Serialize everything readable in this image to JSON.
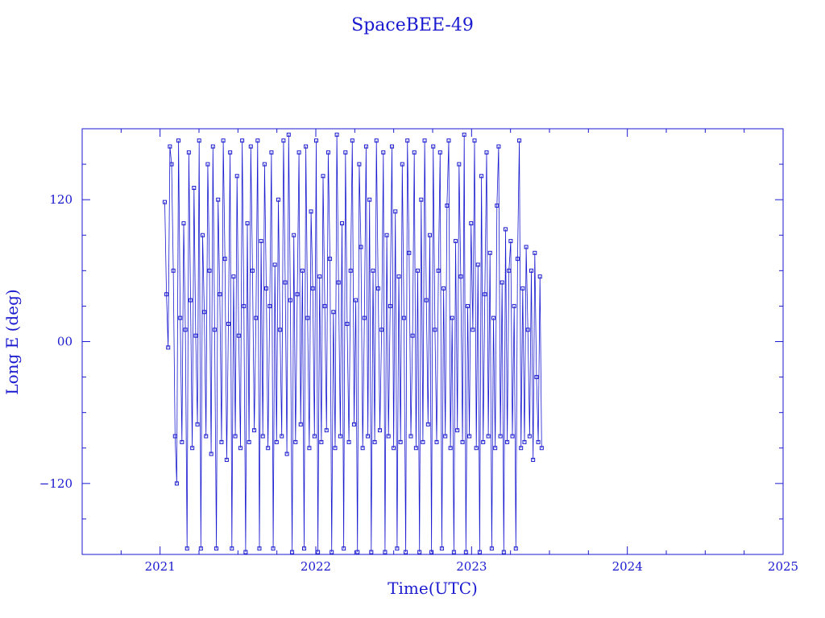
{
  "chart_data": {
    "type": "scatter",
    "title": "SpaceBEE-49",
    "xlabel": "Time(UTC)",
    "ylabel": "Long E (deg)",
    "xlim": [
      2020.5,
      2025.0
    ],
    "ylim": [
      -180,
      180
    ],
    "xticks": [
      2021,
      2022,
      2023,
      2024,
      2025
    ],
    "xtick_labels": [
      "2021",
      "2022",
      "2023",
      "2024",
      "2025"
    ],
    "yticks": [
      -120,
      0,
      120
    ],
    "ytick_labels": [
      "−120",
      "00",
      "120"
    ],
    "color": "#1a1ad0",
    "grid": false,
    "markers": "small open squares joined by thin lines",
    "series": [
      {
        "x_range": [
          2021.03,
          2023.45
        ],
        "y": [
          118,
          40,
          -5,
          165,
          150,
          60,
          -80,
          -120,
          170,
          20,
          -85,
          100,
          10,
          -175,
          160,
          35,
          -90,
          130,
          5,
          -70,
          170,
          -175,
          90,
          25,
          -80,
          150,
          60,
          -95,
          165,
          10,
          -175,
          120,
          40,
          -85,
          170,
          70,
          -100,
          15,
          160,
          -175,
          55,
          -80,
          140,
          5,
          -90,
          170,
          30,
          -178,
          100,
          -85,
          165,
          60,
          -75,
          20,
          170,
          -175,
          85,
          -80,
          150,
          45,
          -90,
          30,
          160,
          -175,
          65,
          -85,
          120,
          10,
          -80,
          170,
          50,
          -95,
          175,
          35,
          -178,
          90,
          -85,
          40,
          160,
          -70,
          60,
          -175,
          165,
          20,
          -90,
          110,
          45,
          -80,
          170,
          -178,
          55,
          -85,
          140,
          30,
          -75,
          160,
          70,
          -178,
          25,
          -90,
          175,
          50,
          -80,
          100,
          -175,
          160,
          15,
          -85,
          60,
          170,
          -70,
          35,
          -178,
          150,
          80,
          -90,
          20,
          165,
          -80,
          120,
          -178,
          60,
          -85,
          170,
          45,
          -75,
          10,
          160,
          -178,
          90,
          -80,
          30,
          165,
          -90,
          110,
          -175,
          55,
          -85,
          150,
          20,
          -178,
          170,
          75,
          -80,
          5,
          160,
          -90,
          60,
          -178,
          120,
          -85,
          170,
          35,
          -70,
          90,
          -178,
          165,
          10,
          -85,
          60,
          160,
          -175,
          45,
          -80,
          115,
          170,
          -90,
          20,
          -178,
          85,
          -75,
          150,
          55,
          -85,
          175,
          -178,
          30,
          -80,
          100,
          10,
          170,
          -90,
          65,
          -178,
          140,
          -85,
          40,
          160,
          -80,
          75,
          -175,
          20,
          -90,
          115,
          165,
          -80,
          50,
          -178,
          95,
          -85,
          60,
          85,
          -80,
          30,
          -175,
          70,
          170,
          -90,
          45,
          -85,
          80,
          10,
          -80,
          60,
          -100,
          75,
          -30,
          -85,
          55,
          -90
        ]
      }
    ]
  }
}
